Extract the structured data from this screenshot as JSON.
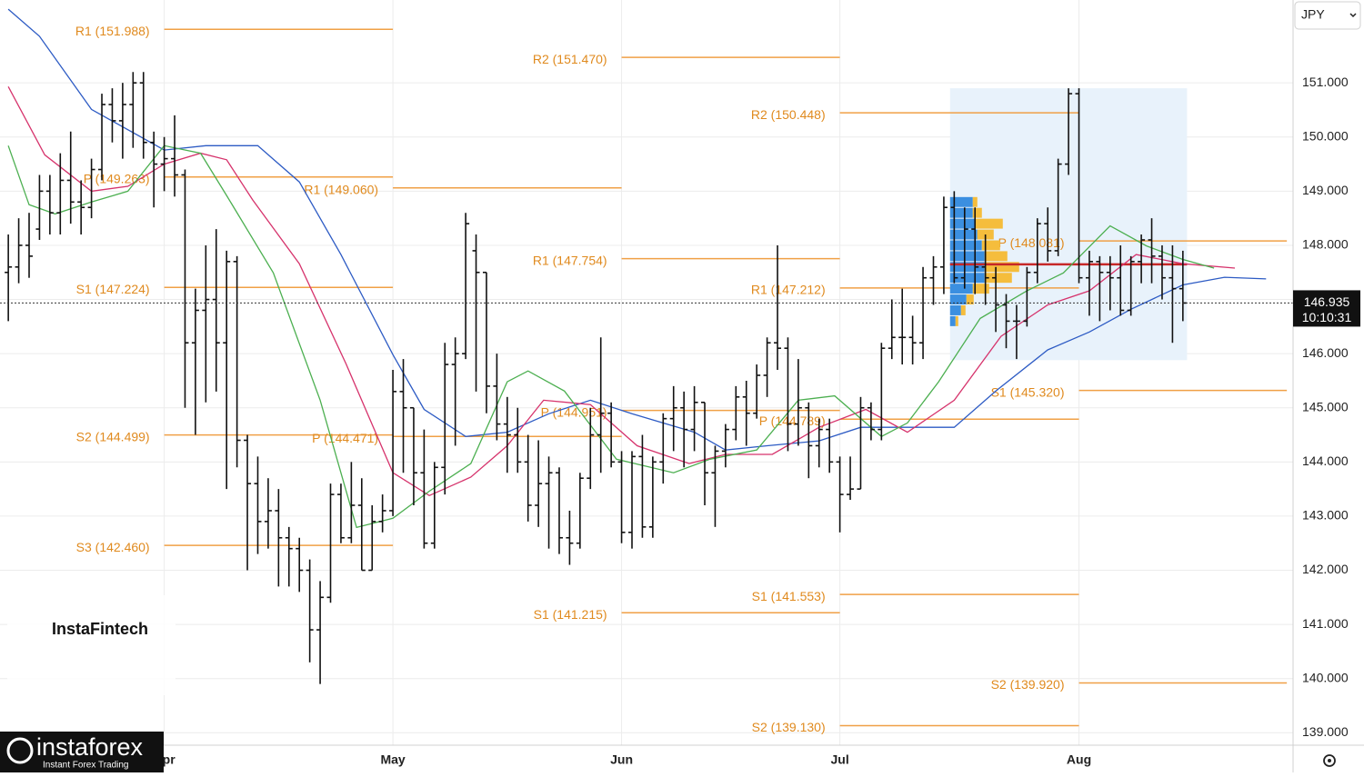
{
  "chart_data": {
    "type": "ohlc",
    "currency": "JPY",
    "x": [
      -15,
      -14,
      -13,
      -12,
      -11,
      -10,
      -9,
      -8,
      -7,
      -6,
      -5,
      -4,
      -3,
      -2,
      -1,
      0,
      1,
      2,
      3,
      4,
      5,
      6,
      7,
      8,
      9,
      10,
      11,
      12,
      13,
      14,
      15,
      16,
      17,
      18,
      19,
      20,
      21,
      22,
      23,
      24,
      25,
      26,
      27,
      28,
      29,
      30,
      31,
      32,
      33,
      34,
      35,
      36,
      37,
      38,
      39,
      40,
      41,
      42,
      43,
      44,
      45,
      46,
      47,
      48,
      49,
      50,
      51,
      52,
      53,
      54,
      55,
      56,
      57,
      58,
      59,
      60,
      61,
      62,
      63,
      64,
      65,
      66,
      67,
      68,
      69,
      70,
      71,
      72,
      73,
      74,
      75,
      76,
      77,
      78,
      79,
      80,
      81,
      82,
      83,
      84,
      85,
      86,
      87,
      88,
      89,
      90,
      91,
      92,
      93,
      94,
      95,
      96,
      97,
      98
    ],
    "open": [
      147.5,
      147.6,
      148.0,
      148.3,
      149.0,
      148.6,
      149.2,
      148.8,
      148.7,
      149.4,
      150.6,
      150.3,
      150.6,
      151.0,
      149.9,
      149.5,
      149.6,
      149.3,
      146.2,
      146.8,
      147.0,
      146.2,
      147.7,
      144.4,
      143.6,
      142.9,
      143.1,
      142.6,
      142.4,
      142.0,
      140.9,
      141.5,
      143.4,
      142.6,
      143.2,
      142.0,
      142.9,
      143.1,
      145.3,
      145.0,
      143.8,
      142.5,
      143.9,
      145.8,
      146.0,
      147.9,
      147.5,
      145.4,
      144.7,
      144.5,
      144.0,
      143.2,
      143.6,
      143.8,
      142.6,
      142.5,
      143.7,
      144.5,
      144.9,
      144.0,
      142.7,
      144.1,
      142.8,
      144.0,
      144.8,
      145.0,
      144.6,
      145.1,
      143.8,
      144.2,
      144.6,
      145.2,
      144.9,
      145.6,
      146.2,
      146.1,
      144.7,
      145.0,
      144.3,
      144.6,
      144.0,
      143.4,
      143.5,
      145.0,
      144.6,
      146.1,
      146.3,
      146.3,
      146.2,
      147.4,
      147.6,
      148.7,
      147.4,
      148.3,
      147.6,
      147.4,
      146.9,
      146.6,
      146.6,
      147.5,
      148.4,
      147.9,
      149.5,
      150.8,
      147.4,
      147.7,
      147.5,
      147.4,
      146.8,
      147.7,
      148.1,
      147.8,
      147.4,
      147.2
    ],
    "high": [
      148.2,
      148.5,
      148.6,
      149.3,
      149.3,
      149.7,
      150.1,
      149.2,
      149.6,
      150.8,
      150.9,
      151.0,
      151.2,
      151.2,
      150.1,
      150.0,
      150.4,
      149.4,
      147.2,
      148.0,
      148.3,
      147.9,
      147.8,
      144.5,
      144.1,
      143.7,
      143.5,
      142.8,
      142.6,
      142.2,
      141.8,
      143.6,
      143.6,
      144.0,
      143.7,
      143.2,
      143.4,
      145.7,
      145.9,
      145.0,
      144.6,
      144.0,
      146.2,
      146.3,
      148.6,
      148.2,
      147.5,
      146.0,
      145.2,
      145.0,
      144.5,
      144.4,
      144.1,
      143.9,
      143.1,
      143.8,
      145.0,
      146.3,
      145.1,
      144.2,
      144.2,
      144.5,
      144.1,
      144.9,
      145.4,
      145.3,
      145.4,
      145.1,
      144.3,
      144.7,
      145.4,
      145.5,
      145.8,
      146.3,
      148.0,
      146.3,
      145.9,
      145.1,
      144.8,
      144.8,
      144.1,
      144.1,
      145.2,
      145.1,
      146.2,
      147.0,
      147.2,
      146.7,
      147.6,
      147.8,
      148.9,
      149.0,
      148.7,
      148.7,
      148.2,
      147.6,
      147.1,
      146.9,
      147.6,
      148.5,
      148.7,
      149.6,
      150.9,
      150.9,
      147.9,
      147.8,
      147.8,
      148.0,
      147.8,
      148.2,
      148.5,
      148.0,
      148.0,
      147.9
    ],
    "low": [
      146.6,
      147.3,
      147.4,
      148.1,
      148.2,
      148.2,
      148.4,
      148.2,
      148.5,
      149.2,
      149.9,
      149.6,
      149.8,
      149.6,
      148.7,
      149.0,
      148.9,
      145.0,
      144.5,
      145.1,
      145.3,
      143.5,
      143.9,
      142.0,
      142.3,
      142.4,
      141.7,
      141.7,
      141.6,
      140.3,
      139.9,
      141.4,
      142.5,
      142.5,
      142.0,
      142.0,
      142.7,
      143.0,
      143.8,
      143.2,
      142.4,
      142.4,
      143.4,
      144.3,
      145.9,
      145.3,
      144.9,
      144.4,
      143.8,
      143.8,
      142.9,
      142.8,
      142.4,
      142.3,
      142.1,
      142.4,
      143.5,
      143.8,
      143.9,
      142.5,
      142.4,
      142.6,
      142.6,
      143.6,
      144.2,
      143.9,
      144.2,
      143.2,
      142.8,
      143.9,
      144.4,
      144.3,
      144.8,
      145.2,
      145.7,
      144.2,
      144.3,
      143.7,
      143.9,
      143.8,
      142.7,
      143.3,
      143.5,
      144.4,
      144.4,
      145.9,
      145.8,
      145.8,
      145.9,
      146.9,
      147.1,
      147.3,
      147.2,
      147.1,
      146.9,
      146.4,
      146.1,
      145.9,
      146.5,
      147.3,
      147.7,
      147.8,
      149.3,
      147.3,
      146.7,
      146.6,
      146.8,
      146.7,
      146.7,
      147.3,
      147.3,
      147.0,
      146.2,
      146.6
    ],
    "close": [
      147.6,
      148.0,
      147.8,
      149.0,
      148.6,
      149.2,
      148.8,
      148.7,
      149.4,
      150.6,
      150.3,
      150.6,
      151.0,
      149.9,
      149.5,
      149.6,
      149.3,
      146.2,
      146.8,
      147.0,
      146.2,
      147.7,
      144.4,
      143.6,
      142.9,
      143.1,
      142.6,
      142.4,
      142.0,
      140.9,
      141.5,
      143.4,
      142.6,
      143.2,
      142.0,
      142.9,
      143.1,
      145.3,
      145.0,
      143.8,
      142.5,
      143.9,
      145.8,
      146.0,
      148.4,
      147.5,
      145.4,
      144.7,
      144.5,
      144.0,
      143.2,
      143.6,
      143.8,
      142.6,
      142.5,
      143.7,
      144.5,
      144.9,
      144.0,
      142.7,
      144.1,
      142.8,
      144.0,
      144.8,
      145.0,
      144.6,
      145.1,
      143.8,
      144.2,
      144.6,
      145.2,
      144.9,
      145.6,
      146.2,
      146.1,
      144.7,
      145.0,
      144.3,
      144.6,
      144.0,
      143.4,
      143.5,
      145.0,
      144.6,
      146.1,
      146.3,
      146.3,
      146.2,
      147.4,
      147.6,
      148.7,
      147.4,
      148.3,
      147.6,
      147.4,
      146.9,
      146.6,
      146.6,
      147.5,
      148.4,
      147.9,
      149.5,
      150.8,
      147.4,
      147.7,
      147.5,
      147.4,
      146.8,
      147.7,
      148.1,
      147.8,
      147.4,
      147.2,
      146.935
    ],
    "bar_color": "#111111",
    "xlim": [
      -15.8,
      108.6
    ],
    "xticks": [
      {
        "value": 0,
        "label": "Apr"
      },
      {
        "value": 22,
        "label": "May"
      },
      {
        "value": 44,
        "label": "Jun"
      },
      {
        "value": 65,
        "label": "Jul"
      },
      {
        "value": 88,
        "label": "Aug"
      }
    ],
    "ylim": [
      138.77,
      152.53
    ],
    "yticks": [
      {
        "value": 139,
        "label": "139.000"
      },
      {
        "value": 140,
        "label": "140.000"
      },
      {
        "value": 141,
        "label": "141.000"
      },
      {
        "value": 142,
        "label": "142.000"
      },
      {
        "value": 143,
        "label": "143.000"
      },
      {
        "value": 144,
        "label": "144.000"
      },
      {
        "value": 145,
        "label": "145.000"
      },
      {
        "value": 146,
        "label": "146.000"
      },
      {
        "value": 147,
        "label": "147.000"
      },
      {
        "value": 148,
        "label": "148.000"
      },
      {
        "value": 149,
        "label": "149.000"
      },
      {
        "value": 150,
        "label": "150.000"
      },
      {
        "value": 151,
        "label": "151.000"
      }
    ],
    "grid": true,
    "last_price": 146.935,
    "countdown": "10:10:31",
    "lines": [
      {
        "color": "#2d5bc4",
        "x": [
          -15,
          -12,
          -7,
          0,
          4,
          9,
          13,
          17,
          22,
          25,
          29,
          33,
          37,
          41,
          45,
          51,
          54,
          58,
          63,
          67,
          72,
          76,
          80,
          85,
          89,
          93,
          98,
          102,
          106
        ],
        "values": [
          152.36,
          151.86,
          150.51,
          149.76,
          149.84,
          149.84,
          149.17,
          147.83,
          145.98,
          144.97,
          144.47,
          144.55,
          144.89,
          145.14,
          144.89,
          144.55,
          144.22,
          144.3,
          144.39,
          144.64,
          144.64,
          144.64,
          145.31,
          146.07,
          146.4,
          146.82,
          147.27,
          147.41,
          147.38
        ]
      },
      {
        "color": "#d6336c",
        "x": [
          -15,
          -11.5,
          -7,
          -3.5,
          0,
          3.5,
          6,
          8.5,
          13,
          17.5,
          22,
          25.5,
          29.5,
          33,
          36.5,
          41,
          45.5,
          50.5,
          54,
          58.5,
          63,
          67.5,
          71.5,
          76,
          80.5,
          85,
          89,
          93.5,
          98,
          103
        ],
        "values": [
          150.93,
          149.67,
          149.0,
          149.09,
          149.5,
          149.7,
          149.58,
          148.84,
          147.66,
          145.81,
          143.8,
          143.38,
          143.72,
          144.3,
          145.14,
          145.06,
          144.3,
          143.97,
          144.14,
          144.14,
          144.64,
          144.97,
          144.55,
          145.14,
          146.32,
          146.9,
          147.16,
          147.83,
          147.66,
          147.58
        ]
      },
      {
        "color": "#4caf50",
        "x": [
          -15,
          -13,
          -10.5,
          -7,
          -3.5,
          0,
          3.5,
          6,
          10.5,
          15,
          18.5,
          22,
          25.5,
          29.5,
          33,
          35,
          38.5,
          43.5,
          49,
          52.5,
          57,
          61,
          64.5,
          69,
          71.5,
          74.5,
          78.5,
          83,
          86.5,
          91,
          94.5,
          98,
          101
        ],
        "values": [
          149.84,
          148.75,
          148.58,
          148.8,
          149.0,
          149.84,
          149.7,
          148.92,
          147.49,
          145.14,
          142.79,
          142.96,
          143.46,
          143.97,
          145.48,
          145.68,
          145.31,
          144.05,
          143.8,
          144.05,
          144.22,
          145.14,
          145.22,
          144.47,
          144.72,
          145.48,
          146.65,
          147.16,
          147.49,
          148.36,
          147.99,
          147.74,
          147.58
        ]
      }
    ],
    "pivot_color": "#f0a046",
    "pivots": [
      {
        "x_range": [
          0,
          22
        ],
        "levels": [
          {
            "value": 151.988,
            "label": "R1 (151.988)"
          },
          {
            "value": 149.263,
            "label": "P (149.263)"
          },
          {
            "value": 147.224,
            "label": "S1 (147.224)"
          },
          {
            "value": 144.499,
            "label": "S2 (144.499)"
          },
          {
            "value": 142.46,
            "label": "S3 (142.460)"
          }
        ]
      },
      {
        "x_range": [
          22,
          44
        ],
        "levels": [
          {
            "value": 149.06,
            "label": "R1 (149.060)"
          },
          {
            "value": 144.471,
            "label": "P (144.471)"
          }
        ]
      },
      {
        "x_range": [
          44,
          65
        ],
        "levels": [
          {
            "value": 151.47,
            "label": "R2 (151.470)"
          },
          {
            "value": 147.754,
            "label": "R1 (147.754)"
          },
          {
            "value": 144.951,
            "label": "P (144.951)"
          },
          {
            "value": 141.215,
            "label": "S1 (141.215)"
          }
        ]
      },
      {
        "x_range": [
          65,
          88
        ],
        "levels": [
          {
            "value": 150.448,
            "label": "R2 (150.448)"
          },
          {
            "value": 147.212,
            "label": "R1 (147.212)"
          },
          {
            "value": 144.789,
            "label": "P (144.789)"
          },
          {
            "value": 141.553,
            "label": "S1 (141.553)"
          },
          {
            "value": 139.13,
            "label": "S2 (139.130)"
          }
        ]
      },
      {
        "x_range": [
          88,
          108
        ],
        "levels": [
          {
            "value": 148.081,
            "label": "P (148.081)"
          },
          {
            "value": 145.32,
            "label": "S1 (145.320)"
          },
          {
            "value": 139.92,
            "label": "S2 (139.920)"
          }
        ]
      }
    ],
    "volume_profile": {
      "xlim": [
        75.6,
        98.4
      ],
      "ylim": [
        145.88,
        150.9
      ],
      "prices": [
        148.8,
        148.6,
        148.4,
        148.2,
        148.0,
        147.8,
        147.6,
        147.4,
        147.2,
        147.0,
        146.8,
        146.6
      ],
      "buy": [
        25,
        25,
        28,
        30,
        35,
        38,
        38,
        38,
        25,
        18,
        12,
        6
      ],
      "sell": [
        5,
        10,
        30,
        18,
        20,
        25,
        38,
        30,
        18,
        8,
        5,
        3
      ],
      "poc": 147.65,
      "colors": [
        "#3b8fe0",
        "#f5bd3c"
      ],
      "poc_color": "#c62828",
      "box_color": "#e8f2fb"
    }
  },
  "branding": {
    "watermark": "InstaFintech",
    "logo": "instaforex",
    "tagline": "Instant Forex Trading"
  }
}
